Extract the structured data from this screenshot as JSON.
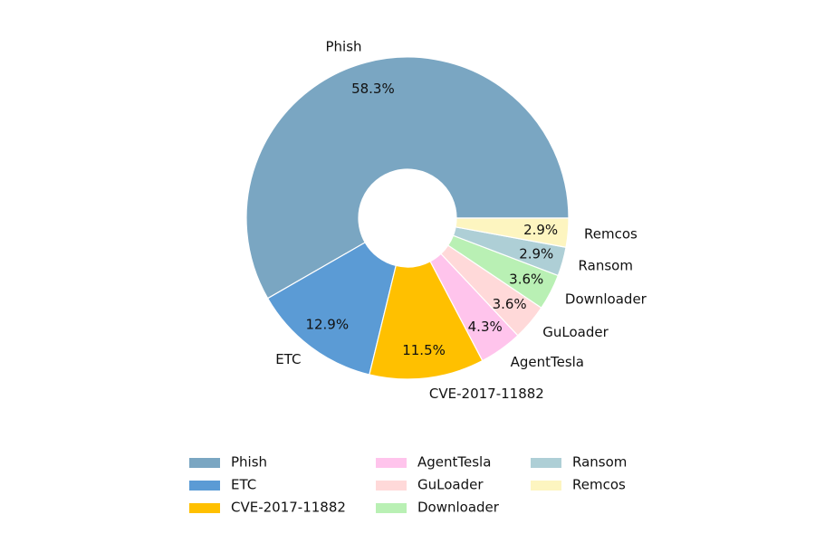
{
  "chart_data": {
    "type": "donut",
    "categories": [
      "Phish",
      "ETC",
      "CVE-2017-11882",
      "AgentTesla",
      "GuLoader",
      "Downloader",
      "Ransom",
      "Remcos"
    ],
    "values": [
      58.3,
      12.9,
      11.5,
      4.3,
      3.6,
      3.6,
      2.9,
      2.9
    ],
    "value_labels": [
      "58.3%",
      "12.9%",
      "11.5%",
      "4.3%",
      "3.6%",
      "3.6%",
      "2.9%",
      "2.9%"
    ],
    "colors": [
      "#7aa6c2",
      "#5b9bd5",
      "#ffc000",
      "#ffc4ec",
      "#ffd9d9",
      "#b9f0b4",
      "#aecfd6",
      "#fdf5c0"
    ],
    "legend": "lower center"
  }
}
